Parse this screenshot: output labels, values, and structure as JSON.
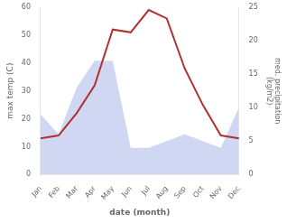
{
  "chart_data": {
    "type": "line",
    "categories": [
      "Jan",
      "Feb",
      "Mar",
      "Apr",
      "May",
      "Jun",
      "Jul",
      "Aug",
      "Sep",
      "Oct",
      "Nov",
      "Dec"
    ],
    "xlabel": "date (month)",
    "ylabel": "max temp (C)",
    "y2label": "med. precipitation\n(kg/m2)",
    "series": [
      {
        "type": "area",
        "color": "#c8d0f0",
        "axis": "y2",
        "values": [
          9,
          6,
          13,
          17,
          17,
          4,
          4,
          5,
          6,
          5,
          4,
          10
        ]
      },
      {
        "type": "line",
        "color": "#b03030",
        "values": [
          13,
          14,
          22,
          32,
          52,
          51,
          59,
          56,
          38,
          25,
          14,
          13
        ]
      }
    ],
    "ylim": [
      0,
      60
    ],
    "yticks": [
      0,
      10,
      20,
      30,
      40,
      50,
      60
    ],
    "y2lim": [
      0,
      25
    ],
    "y2ticks": [
      0,
      5,
      10,
      15,
      20,
      25
    ],
    "grid": false
  }
}
